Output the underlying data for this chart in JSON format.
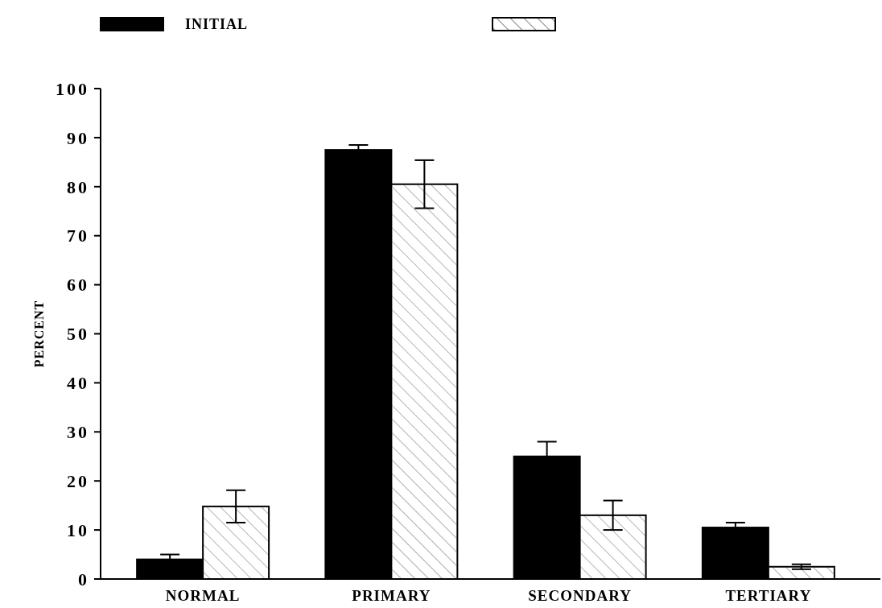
{
  "chart_data": {
    "type": "bar",
    "ylabel": "PERCENT",
    "categories": [
      "NORMAL",
      "PRIMARY",
      "SECONDARY",
      "TERTIARY"
    ],
    "series": [
      {
        "name": "INITIAL",
        "color": "#000000",
        "values": [
          4,
          87.5,
          25,
          10.5
        ],
        "errors": [
          1,
          1,
          3,
          1
        ]
      },
      {
        "color": "#ffffff",
        "values": [
          14.8,
          80.5,
          13,
          2.5
        ],
        "errors": [
          3.3,
          4.9,
          3,
          0.5
        ]
      }
    ],
    "ylim": [
      0,
      100
    ],
    "yticks": [
      0,
      10,
      20,
      30,
      40,
      50,
      60,
      70,
      80,
      90,
      100
    ],
    "grid": false,
    "legend": "top"
  }
}
